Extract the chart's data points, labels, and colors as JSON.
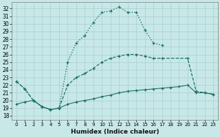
{
  "xlabel": "Humidex (Indice chaleur)",
  "bg_color": "#c8e8e8",
  "line_color": "#1a7060",
  "grid_color": "#a8cece",
  "xlim": [
    -0.5,
    23.5
  ],
  "ylim": [
    17.5,
    32.8
  ],
  "ytick_vals": [
    18,
    19,
    20,
    21,
    22,
    23,
    24,
    25,
    26,
    27,
    28,
    29,
    30,
    31,
    32
  ],
  "xtick_vals": [
    0,
    1,
    2,
    3,
    4,
    5,
    6,
    7,
    8,
    9,
    10,
    11,
    12,
    13,
    14,
    15,
    16,
    17,
    18,
    19,
    20,
    21,
    22,
    23
  ],
  "curve1_x": [
    0,
    1,
    2,
    3,
    4,
    5,
    6,
    7,
    8,
    9,
    10,
    11,
    12,
    13,
    14,
    15,
    16,
    17
  ],
  "curve1_y": [
    22.5,
    21.5,
    20.0,
    19.2,
    18.8,
    19.0,
    25.0,
    27.5,
    28.5,
    30.2,
    31.5,
    31.7,
    32.2,
    31.5,
    31.5,
    29.2,
    27.5,
    27.2
  ],
  "curve2_x": [
    0,
    1,
    2,
    3,
    4,
    5,
    6,
    7,
    8,
    9,
    10,
    11,
    12,
    13,
    14,
    15,
    16,
    17,
    20,
    21,
    22,
    23
  ],
  "curve2_y": [
    22.5,
    21.5,
    20.0,
    19.2,
    18.8,
    19.0,
    22.0,
    23.0,
    23.5,
    24.2,
    25.0,
    25.5,
    25.8,
    26.0,
    26.0,
    25.8,
    25.5,
    25.5,
    25.5,
    21.2,
    21.0,
    20.8
  ],
  "curve3_x": [
    0,
    1,
    2,
    3,
    4,
    5,
    6,
    7,
    8,
    9,
    10,
    11,
    12,
    13,
    14,
    15,
    16,
    17,
    18,
    19,
    20,
    21,
    22,
    23
  ],
  "curve3_y": [
    19.5,
    19.8,
    20.0,
    19.2,
    18.8,
    19.0,
    19.5,
    19.8,
    20.0,
    20.2,
    20.5,
    20.7,
    21.0,
    21.2,
    21.3,
    21.4,
    21.5,
    21.6,
    21.7,
    21.8,
    22.0,
    21.0,
    21.0,
    20.8
  ]
}
